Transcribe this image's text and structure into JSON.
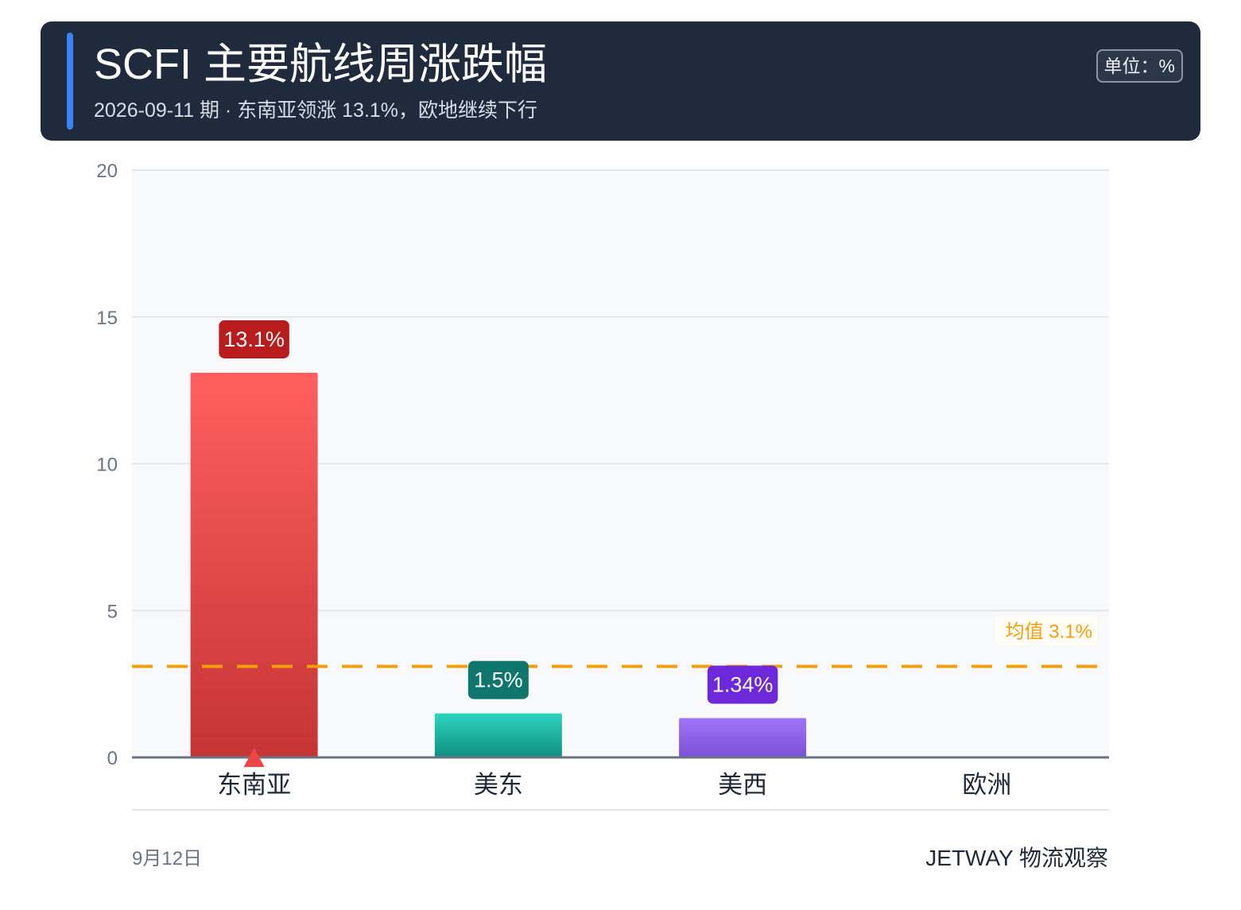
{
  "header": {
    "title": "SCFI 主要航线周涨跌幅",
    "subtitle": "2026-09-11 期 · 东南亚领涨 13.1%，欧地继续下行",
    "unit": "单位：%"
  },
  "footer": {
    "date": "9月12日",
    "source": "JETWAY 物流观察"
  },
  "colors": {
    "header_bg": "#1f2a3c",
    "accent": "#3b82f6",
    "average_line": "#f59e0b",
    "up_marker": "#ef4444"
  },
  "chart_data": {
    "type": "bar",
    "title": "SCFI 主要航线周涨跌幅",
    "xlabel": "",
    "ylabel": "",
    "ylim": [
      0,
      20
    ],
    "yticks": [
      0,
      5,
      10,
      15,
      20
    ],
    "grid": true,
    "categories": [
      "东南亚",
      "美东",
      "美西",
      "欧洲"
    ],
    "values": [
      13.1,
      1.5,
      1.34,
      null
    ],
    "data_labels": [
      "13.1%",
      "1.5%",
      "1.34%",
      ""
    ],
    "bar_colors": [
      {
        "top": "#ff5f5f",
        "bottom": "#c53434",
        "label_bg": "#b91c1c"
      },
      {
        "top": "#2dd4bf",
        "bottom": "#0f8f80",
        "label_bg": "#0f766e"
      },
      {
        "top": "#a074f7",
        "bottom": "#7c4fd8",
        "label_bg": "#6d28d9"
      },
      {
        "top": "#94a3b8",
        "bottom": "#64748b",
        "label_bg": "#475569"
      }
    ],
    "markers": [
      "up",
      null,
      null,
      null
    ],
    "average": {
      "value": 3.1,
      "label": "均值 3.1%"
    }
  }
}
